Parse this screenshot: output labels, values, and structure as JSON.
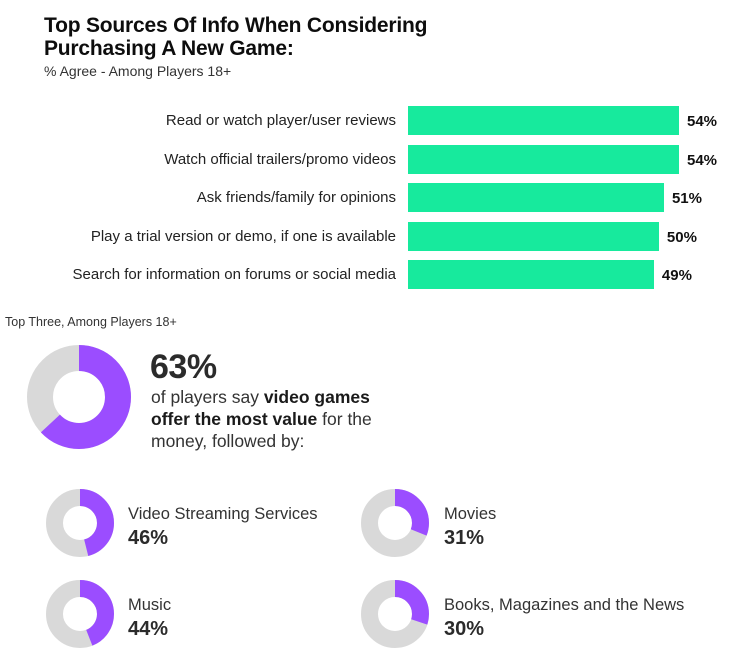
{
  "title_line1": "Top Sources Of Info When Considering",
  "title_line2": "Purchasing A New Game:",
  "subtitle": "% Agree - Among Players 18+",
  "colors": {
    "bar": "#17ea9d",
    "donut_fill": "#9b4dff",
    "donut_track": "#d9d9d9"
  },
  "chart_data": [
    {
      "type": "bar",
      "orientation": "horizontal",
      "title": "Top Sources Of Info When Considering Purchasing A New Game:",
      "subtitle": "% Agree - Among Players 18+",
      "categories": [
        "Read or watch player/user reviews",
        "Watch official trailers/promo videos",
        "Ask friends/family for opinions",
        "Play a trial version or demo, if one is available",
        "Search for information on forums or social media"
      ],
      "values": [
        54,
        54,
        51,
        50,
        49
      ],
      "value_labels": [
        "54%",
        "54%",
        "51%",
        "50%",
        "49%"
      ],
      "xlim": [
        0,
        100
      ],
      "grid": false
    },
    {
      "type": "pie",
      "variant": "donut",
      "section_label": "Top Three, Among Players 18+",
      "main": {
        "value": 63,
        "value_label": "63%",
        "text_pre": "of players say ",
        "text_bold": "video games offer the most value",
        "text_post": " for the money, followed by:"
      },
      "items": [
        {
          "name": "Video Streaming Services",
          "value": 46,
          "value_label": "46%"
        },
        {
          "name": "Movies",
          "value": 31,
          "value_label": "31%"
        },
        {
          "name": "Music",
          "value": 44,
          "value_label": "44%"
        },
        {
          "name": "Books, Magazines and the News",
          "value": 30,
          "value_label": "30%"
        }
      ]
    }
  ]
}
